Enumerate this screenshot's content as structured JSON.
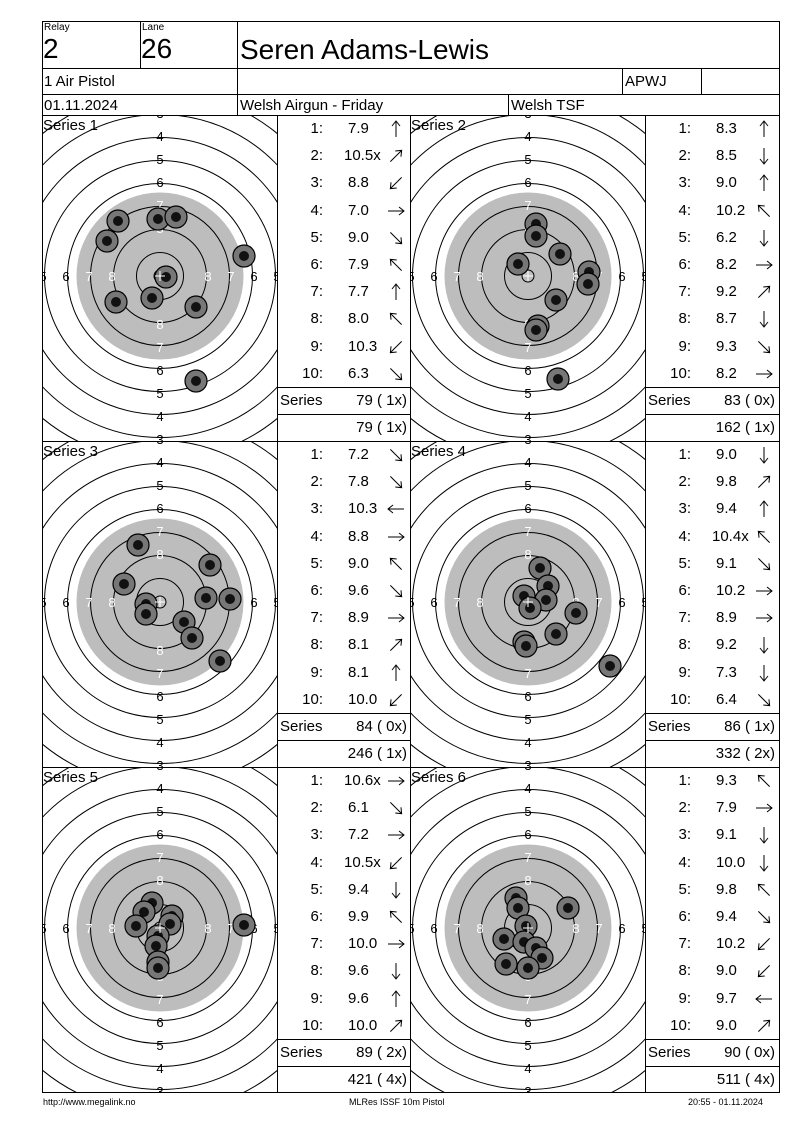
{
  "header": {
    "relay_label": "Relay",
    "relay_value": "2",
    "lane_label": "Lane",
    "lane_value": "26",
    "name": "Seren Adams-Lewis",
    "event": "1 Air Pistol",
    "club_code": "APWJ",
    "date": "01.11.2024",
    "competition": "Welsh Airgun - Friday",
    "organizer": "Welsh TSF"
  },
  "series_label": "Series",
  "series": [
    {
      "title": "Series 1",
      "total": "79 ( 1x)",
      "cumulative": "79 ( 1x)",
      "shots": [
        [
          "1:",
          "7.9",
          "up"
        ],
        [
          "2:",
          "10.5x",
          "upright"
        ],
        [
          "3:",
          "8.8",
          "downleft"
        ],
        [
          "4:",
          "7.0",
          "right"
        ],
        [
          "5:",
          "9.0",
          "downright"
        ],
        [
          "6:",
          "7.9",
          "upleft"
        ],
        [
          "7:",
          "7.7",
          "up"
        ],
        [
          "8:",
          "8.0",
          "upleft"
        ],
        [
          "9:",
          "10.3",
          "downleft"
        ],
        [
          "10:",
          "6.3",
          "downright"
        ]
      ]
    },
    {
      "title": "Series 2",
      "total": "83 ( 0x)",
      "cumulative": "162 ( 1x)",
      "shots": [
        [
          "1:",
          "8.3",
          "up"
        ],
        [
          "2:",
          "8.5",
          "down"
        ],
        [
          "3:",
          "9.0",
          "up"
        ],
        [
          "4:",
          "10.2",
          "upleft"
        ],
        [
          "5:",
          "6.2",
          "down"
        ],
        [
          "6:",
          "8.2",
          "right"
        ],
        [
          "7:",
          "9.2",
          "upright"
        ],
        [
          "8:",
          "8.7",
          "down"
        ],
        [
          "9:",
          "9.3",
          "downright"
        ],
        [
          "10:",
          "8.2",
          "right"
        ]
      ]
    },
    {
      "title": "Series 3",
      "total": "84 ( 0x)",
      "cumulative": "246 ( 1x)",
      "shots": [
        [
          "1:",
          "7.2",
          "downright"
        ],
        [
          "2:",
          "7.8",
          "downright"
        ],
        [
          "3:",
          "10.3",
          "left"
        ],
        [
          "4:",
          "8.8",
          "right"
        ],
        [
          "5:",
          "9.0",
          "upleft"
        ],
        [
          "6:",
          "9.6",
          "downright"
        ],
        [
          "7:",
          "8.9",
          "right"
        ],
        [
          "8:",
          "8.1",
          "upright"
        ],
        [
          "9:",
          "8.1",
          "up"
        ],
        [
          "10:",
          "10.0",
          "downleft"
        ]
      ]
    },
    {
      "title": "Series 4",
      "total": "86 ( 1x)",
      "cumulative": "332 ( 2x)",
      "shots": [
        [
          "1:",
          "9.0",
          "down"
        ],
        [
          "2:",
          "9.8",
          "upright"
        ],
        [
          "3:",
          "9.4",
          "up"
        ],
        [
          "4:",
          "10.4x",
          "upleft"
        ],
        [
          "5:",
          "9.1",
          "downright"
        ],
        [
          "6:",
          "10.2",
          "right"
        ],
        [
          "7:",
          "8.9",
          "right"
        ],
        [
          "8:",
          "9.2",
          "down"
        ],
        [
          "9:",
          "7.3",
          "down"
        ],
        [
          "10:",
          "6.4",
          "downright"
        ]
      ]
    },
    {
      "title": "Series 5",
      "total": "89 ( 2x)",
      "cumulative": "421 ( 4x)",
      "shots": [
        [
          "1:",
          "10.6x",
          "right"
        ],
        [
          "2:",
          "6.1",
          "downright"
        ],
        [
          "3:",
          "7.2",
          "right"
        ],
        [
          "4:",
          "10.5x",
          "downleft"
        ],
        [
          "5:",
          "9.4",
          "down"
        ],
        [
          "6:",
          "9.9",
          "upleft"
        ],
        [
          "7:",
          "10.0",
          "right"
        ],
        [
          "8:",
          "9.6",
          "down"
        ],
        [
          "9:",
          "9.6",
          "up"
        ],
        [
          "10:",
          "10.0",
          "upright"
        ]
      ]
    },
    {
      "title": "Series 6",
      "total": "90 ( 0x)",
      "cumulative": "511 ( 4x)",
      "shots": [
        [
          "1:",
          "9.3",
          "upleft"
        ],
        [
          "2:",
          "7.9",
          "right"
        ],
        [
          "3:",
          "9.1",
          "down"
        ],
        [
          "4:",
          "10.0",
          "down"
        ],
        [
          "5:",
          "9.8",
          "upleft"
        ],
        [
          "6:",
          "9.4",
          "downright"
        ],
        [
          "7:",
          "10.2",
          "downleft"
        ],
        [
          "8:",
          "9.0",
          "downleft"
        ],
        [
          "9:",
          "9.7",
          "left"
        ],
        [
          "10:",
          "9.0",
          "upright"
        ]
      ]
    }
  ],
  "footer": {
    "left": "http://www.megalink.no",
    "center": "MLRes ISSF 10m Pistol",
    "right": "20:55 - 01.11.2024"
  },
  "colors": {
    "black_zone": "#bdbdbd",
    "ring": "#000000",
    "hit": "#111111",
    "hit_halo": "#777777"
  }
}
